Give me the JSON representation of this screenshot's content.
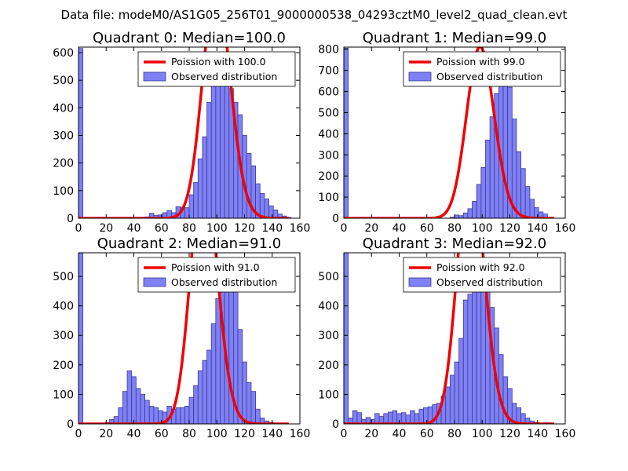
{
  "figure_title": "Data file: modeM0/AS1G05_256T01_9000000538_04293cztM0_level2_quad_clean.evt",
  "chart_data": [
    {
      "type": "bar",
      "title": "Quadrant 0: Median=100.0",
      "xlim": [
        0,
        160
      ],
      "ylim": [
        0,
        620
      ],
      "xticks": [
        0,
        20,
        40,
        60,
        80,
        100,
        120,
        140,
        160
      ],
      "yticks": [
        0,
        100,
        200,
        300,
        400,
        500,
        600
      ],
      "bin_width": 3.2,
      "bins": [
        0,
        3.2,
        6.4,
        9.6,
        12.8,
        16,
        19.2,
        22.4,
        25.6,
        28.8,
        32,
        35.2,
        38.4,
        41.6,
        44.8,
        48,
        51.2,
        54.4,
        57.6,
        60.8,
        64,
        67.2,
        70.4,
        73.6,
        76.8,
        80,
        83.2,
        86.4,
        89.6,
        92.8,
        96,
        99.2,
        102.4,
        105.6,
        108.8,
        112,
        115.2,
        118.4,
        121.6,
        124.8,
        128,
        131.2,
        134.4,
        137.6,
        140.8,
        144,
        147.2,
        150.4
      ],
      "counts": [
        615,
        0,
        0,
        0,
        0,
        0,
        0,
        0,
        0,
        0,
        0,
        0,
        0,
        0,
        0,
        5,
        18,
        10,
        12,
        20,
        28,
        20,
        42,
        40,
        38,
        85,
        130,
        215,
        295,
        420,
        530,
        580,
        560,
        510,
        470,
        420,
        375,
        300,
        235,
        190,
        125,
        90,
        70,
        45,
        30,
        15,
        8,
        3
      ],
      "poisson_mean": 100.0,
      "legend": [
        "Poission with 100.0",
        "Observed distribution"
      ]
    },
    {
      "type": "bar",
      "title": "Quadrant 1: Median=99.0",
      "xlim": [
        0,
        160
      ],
      "ylim": [
        0,
        810
      ],
      "xticks": [
        0,
        20,
        40,
        60,
        80,
        100,
        120,
        140,
        160
      ],
      "yticks": [
        0,
        100,
        200,
        300,
        400,
        500,
        600,
        700,
        800
      ],
      "bin_width": 3.2,
      "bins": [
        0,
        3.2,
        6.4,
        9.6,
        12.8,
        16,
        19.2,
        22.4,
        25.6,
        28.8,
        32,
        35.2,
        38.4,
        41.6,
        44.8,
        48,
        51.2,
        54.4,
        57.6,
        60.8,
        64,
        67.2,
        70.4,
        73.6,
        76.8,
        80,
        83.2,
        86.4,
        89.6,
        92.8,
        96,
        99.2,
        102.4,
        105.6,
        108.8,
        112,
        115.2,
        118.4,
        121.6,
        124.8,
        128,
        131.2,
        134.4,
        137.6,
        140.8,
        144,
        147.2,
        150.4
      ],
      "counts": [
        805,
        0,
        0,
        0,
        0,
        0,
        0,
        0,
        0,
        0,
        0,
        0,
        0,
        0,
        0,
        0,
        0,
        0,
        0,
        0,
        0,
        10,
        0,
        0,
        5,
        15,
        12,
        25,
        45,
        80,
        160,
        240,
        370,
        480,
        590,
        740,
        770,
        620,
        470,
        315,
        235,
        150,
        90,
        50,
        30,
        20,
        5,
        0
      ],
      "poisson_mean": 99.0,
      "legend": [
        "Poission with 99.0",
        "Observed distribution"
      ]
    },
    {
      "type": "bar",
      "title": "Quadrant 2: Median=91.0",
      "xlim": [
        0,
        160
      ],
      "ylim": [
        0,
        580
      ],
      "xticks": [
        0,
        20,
        40,
        60,
        80,
        100,
        120,
        140,
        160
      ],
      "yticks": [
        0,
        100,
        200,
        300,
        400,
        500
      ],
      "bin_width": 3.2,
      "bins": [
        0,
        3.2,
        6.4,
        9.6,
        12.8,
        16,
        19.2,
        22.4,
        25.6,
        28.8,
        32,
        35.2,
        38.4,
        41.6,
        44.8,
        48,
        51.2,
        54.4,
        57.6,
        60.8,
        64,
        67.2,
        70.4,
        73.6,
        76.8,
        80,
        83.2,
        86.4,
        89.6,
        92.8,
        96,
        99.2,
        102.4,
        105.6,
        108.8,
        112,
        115.2,
        118.4,
        121.6,
        124.8,
        128,
        131.2,
        134.4,
        137.6,
        140.8,
        144,
        147.2,
        150.4
      ],
      "counts": [
        580,
        0,
        0,
        0,
        0,
        0,
        5,
        15,
        25,
        55,
        110,
        180,
        160,
        120,
        100,
        80,
        60,
        55,
        45,
        40,
        60,
        50,
        55,
        55,
        60,
        90,
        130,
        180,
        215,
        250,
        340,
        425,
        545,
        555,
        550,
        470,
        320,
        210,
        140,
        110,
        50,
        20,
        10,
        5,
        0,
        0,
        0,
        0
      ],
      "poisson_mean": 91.0,
      "legend": [
        "Poission with 91.0",
        "Observed distribution"
      ]
    },
    {
      "type": "bar",
      "title": "Quadrant 3: Median=92.0",
      "xlim": [
        0,
        160
      ],
      "ylim": [
        0,
        580
      ],
      "xticks": [
        0,
        20,
        40,
        60,
        80,
        100,
        120,
        140,
        160
      ],
      "yticks": [
        0,
        100,
        200,
        300,
        400,
        500
      ],
      "bin_width": 3.2,
      "bins": [
        0,
        3.2,
        6.4,
        9.6,
        12.8,
        16,
        19.2,
        22.4,
        25.6,
        28.8,
        32,
        35.2,
        38.4,
        41.6,
        44.8,
        48,
        51.2,
        54.4,
        57.6,
        60.8,
        64,
        67.2,
        70.4,
        73.6,
        76.8,
        80,
        83.2,
        86.4,
        89.6,
        92.8,
        96,
        99.2,
        102.4,
        105.6,
        108.8,
        112,
        115.2,
        118.4,
        121.6,
        124.8,
        128,
        131.2,
        134.4,
        137.6,
        140.8,
        144,
        147.2,
        150.4
      ],
      "counts": [
        580,
        20,
        45,
        38,
        15,
        22,
        15,
        35,
        25,
        35,
        40,
        45,
        35,
        38,
        30,
        45,
        35,
        50,
        55,
        58,
        65,
        70,
        95,
        125,
        165,
        210,
        290,
        420,
        440,
        520,
        560,
        545,
        490,
        395,
        325,
        235,
        160,
        120,
        70,
        55,
        35,
        20,
        10,
        5,
        0,
        0,
        0,
        0
      ],
      "poisson_mean": 92.0,
      "legend": [
        "Poission with 92.0",
        "Observed distribution"
      ]
    }
  ],
  "colors": {
    "bar_fill": "#8080f5",
    "bar_stroke": "#3a3a99",
    "poisson_line": "#f00000"
  }
}
